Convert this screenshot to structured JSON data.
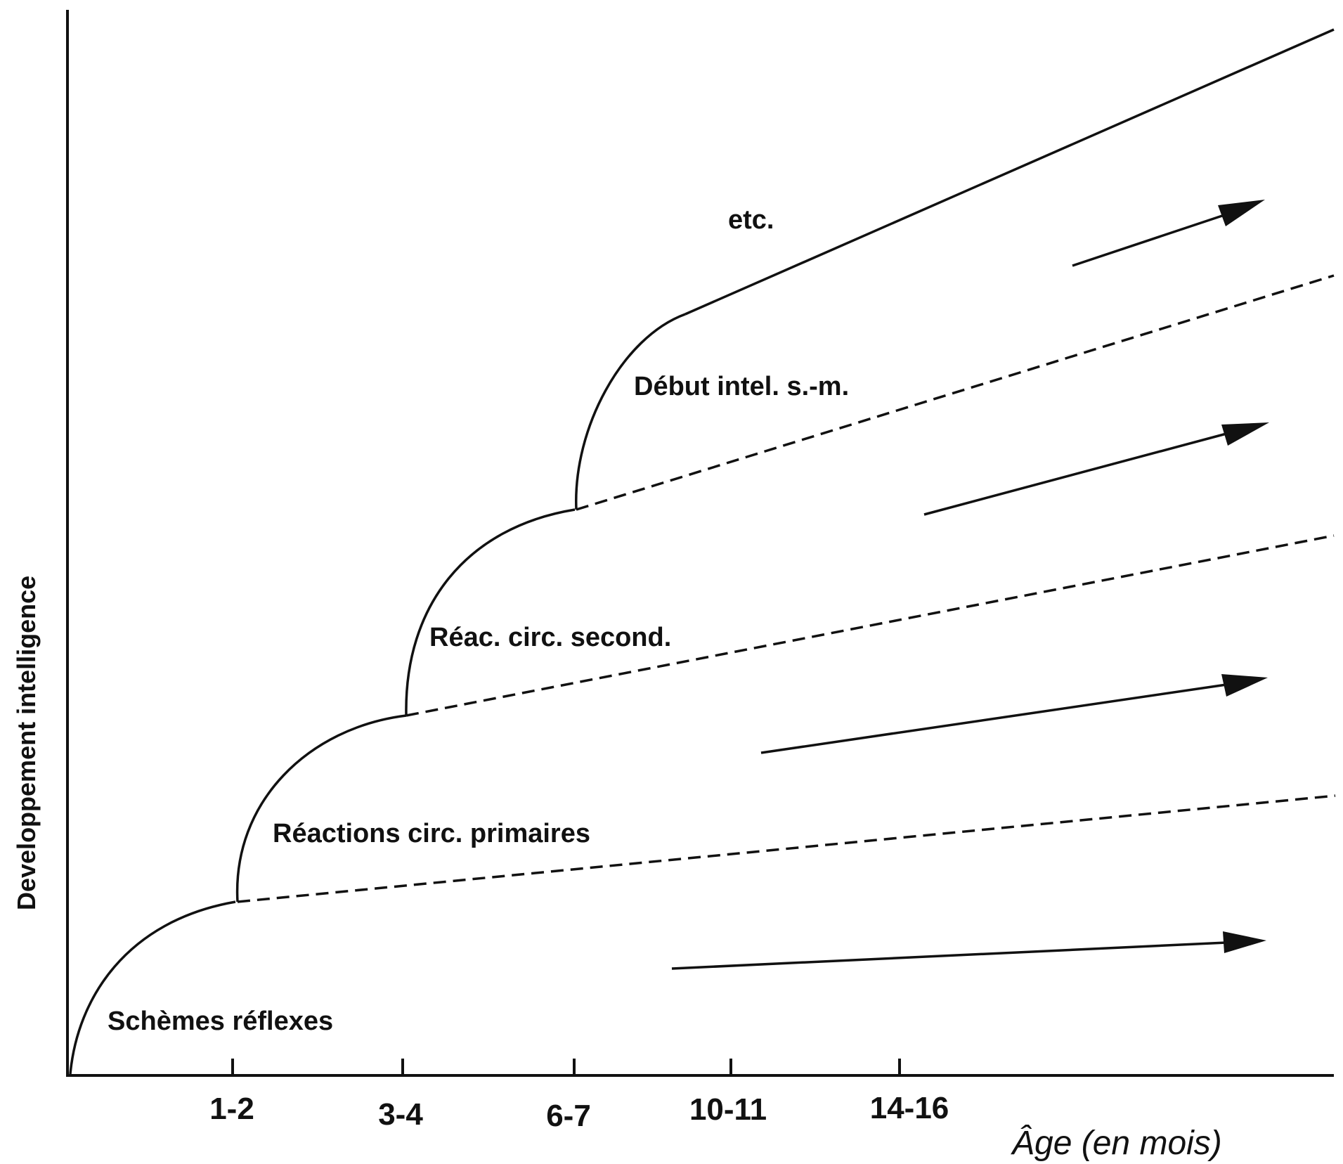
{
  "diagram": {
    "y_axis_label": "Developpement intelligence",
    "x_axis_label": "Âge (en  mois)",
    "tick_labels": [
      "1-2",
      "3-4",
      "6-7",
      "10-11",
      "14-16"
    ],
    "stages": [
      {
        "label": "Schèmes réflexes"
      },
      {
        "label": "Réactions circ. primaires"
      },
      {
        "label": "Réac. circ. second."
      },
      {
        "label": "Début intel. s.-m."
      },
      {
        "label": "etc."
      }
    ],
    "colors": {
      "ink": "#111111",
      "background": "#ffffff"
    }
  }
}
